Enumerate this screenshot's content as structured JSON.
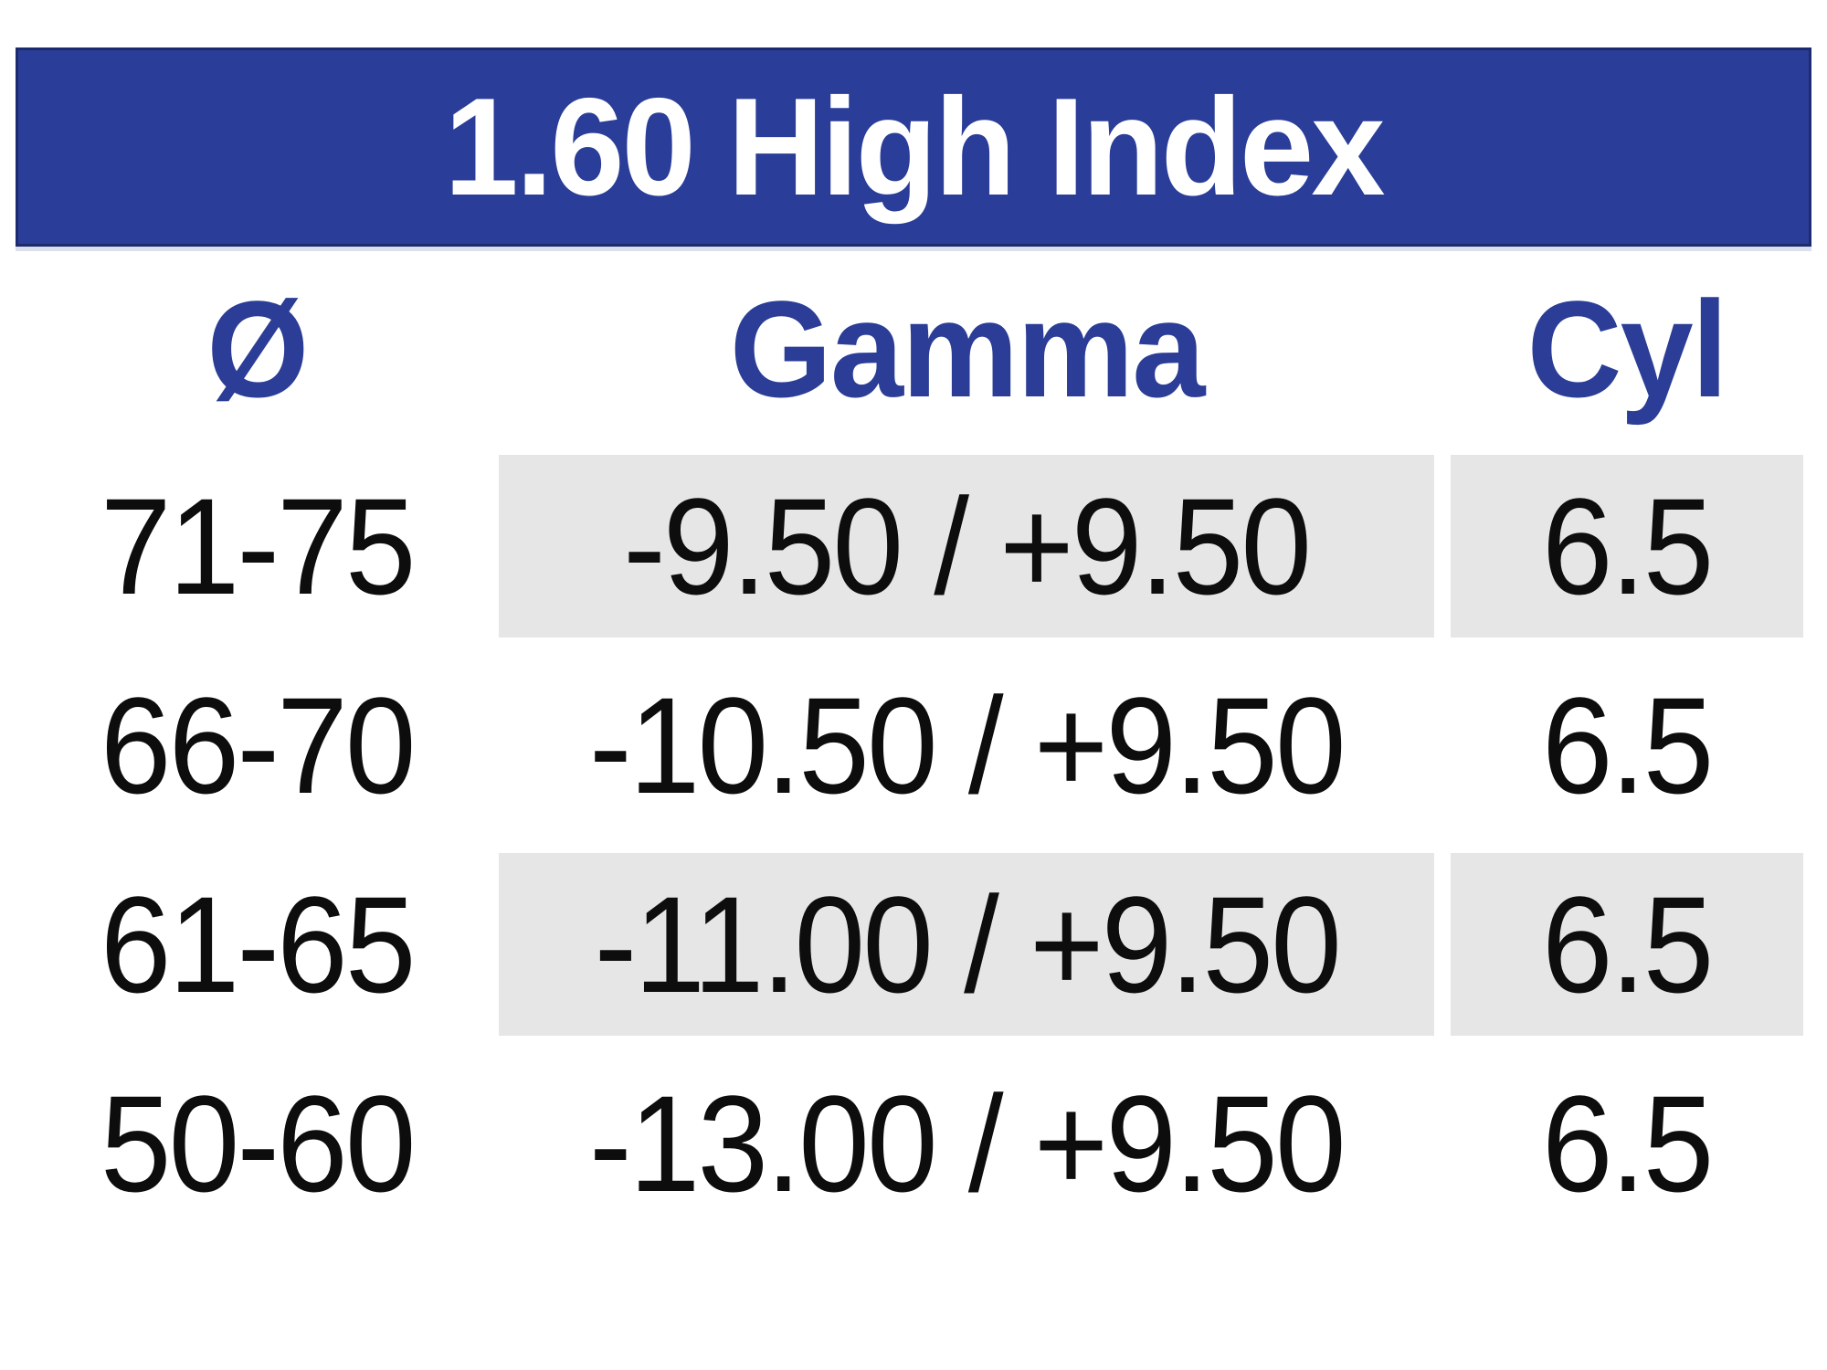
{
  "banner": {
    "title": "1.60 High Index"
  },
  "columns": {
    "diameter": "Ø",
    "gamma": "Gamma",
    "cyl": "Cyl"
  },
  "rows": [
    {
      "diameter": "71-75",
      "gamma": "-9.50 / +9.50",
      "cyl": "6.5",
      "striped": true
    },
    {
      "diameter": "66-70",
      "gamma": "-10.50 / +9.50",
      "cyl": "6.5",
      "striped": false
    },
    {
      "diameter": "61-65",
      "gamma": "-11.00 / +9.50",
      "cyl": "6.5",
      "striped": true
    },
    {
      "diameter": "50-60",
      "gamma": "-13.00 / +9.50",
      "cyl": "6.5",
      "striped": false
    }
  ],
  "colors": {
    "banner_blue": "#2a3d98",
    "banner_border": "#1c2a6e",
    "banner_underline": "#dcdfec",
    "header_blue": "#2b3d96",
    "stripe_gray": "#e6e6e7",
    "title_white": "#ffffff",
    "text_black": "#0d0d0d"
  },
  "chart_data": {
    "type": "table",
    "title": "1.60 High Index",
    "columns": [
      "Ø",
      "Gamma",
      "Cyl"
    ],
    "rows": [
      [
        "71-75",
        "-9.50 / +9.50",
        "6.5"
      ],
      [
        "66-70",
        "-10.50 / +9.50",
        "6.5"
      ],
      [
        "61-65",
        "-11.00 / +9.50",
        "6.5"
      ],
      [
        "50-60",
        "-13.00 / +9.50",
        "6.5"
      ]
    ],
    "layout_hints": {
      "striped_rows": [
        0,
        2
      ],
      "stripe_applies_to_columns": [
        "Gamma",
        "Cyl"
      ],
      "header_style": "blue bold text on white",
      "title_style": "white bold text on blue banner"
    }
  }
}
